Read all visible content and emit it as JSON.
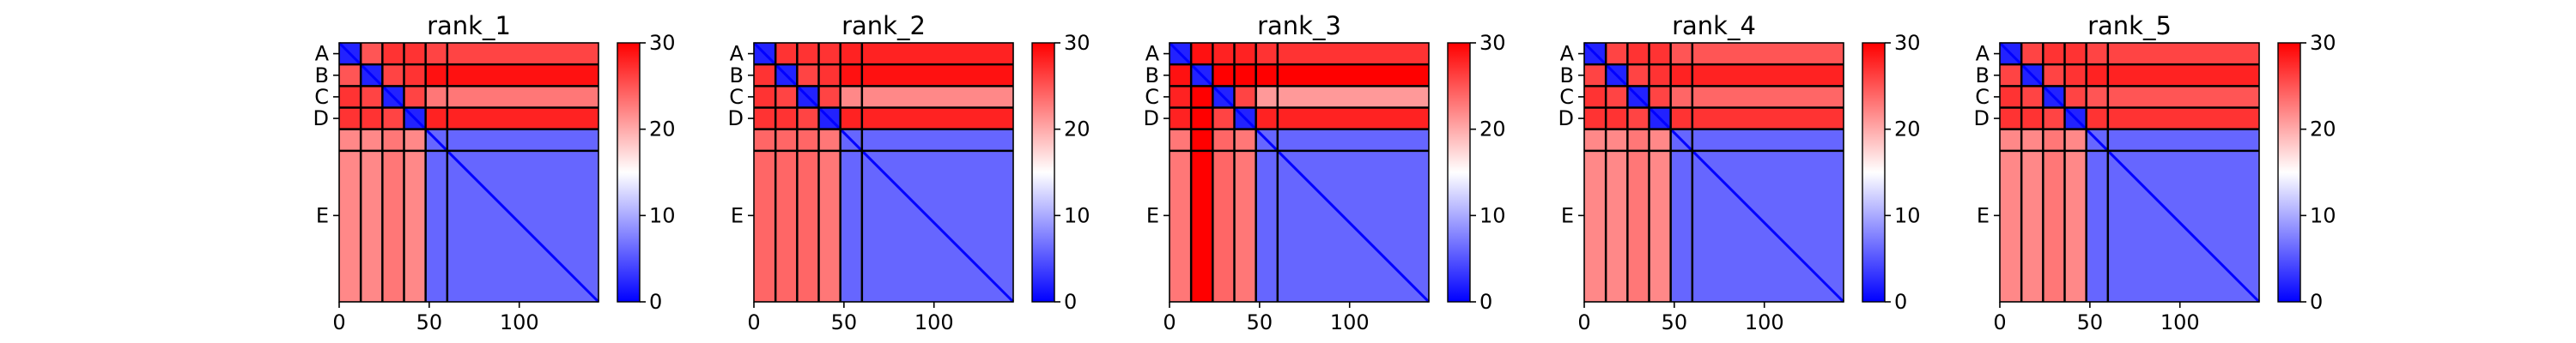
{
  "figure": {
    "background": "#ffffff"
  },
  "chart_data": [
    {
      "type": "heatmap",
      "title": "rank_1",
      "xlabel": "",
      "ylabel": "",
      "x_range": [
        0,
        144
      ],
      "y_range": [
        0,
        144
      ],
      "x_ticks": [
        0,
        50,
        100
      ],
      "x_tick_labels": [
        "0",
        "50",
        "100"
      ],
      "chain_labels": [
        "A",
        "B",
        "C",
        "D",
        "E"
      ],
      "chain_boundaries": [
        0,
        12,
        24,
        36,
        48,
        60,
        144
      ],
      "colorbar": {
        "min": 0,
        "max": 30,
        "ticks": [
          0,
          10,
          20,
          30
        ],
        "tick_labels": [
          "0",
          "10",
          "20",
          "30"
        ],
        "colors": [
          "#0000ff",
          "#ffffff",
          "#ff0000"
        ]
      },
      "block_mean_values": [
        [
          2,
          25,
          27,
          27,
          26,
          26
        ],
        [
          25,
          2,
          26,
          27,
          29,
          29
        ],
        [
          27,
          26,
          2,
          26,
          23,
          23
        ],
        [
          27,
          27,
          26,
          2,
          28,
          28
        ],
        [
          22,
          22,
          23,
          22,
          6,
          6
        ],
        [
          22,
          22,
          23,
          22,
          6,
          6
        ]
      ]
    },
    {
      "type": "heatmap",
      "title": "rank_2",
      "xlabel": "",
      "ylabel": "",
      "x_range": [
        0,
        144
      ],
      "y_range": [
        0,
        144
      ],
      "x_ticks": [
        0,
        50,
        100
      ],
      "x_tick_labels": [
        "0",
        "50",
        "100"
      ],
      "chain_labels": [
        "A",
        "B",
        "C",
        "D",
        "E"
      ],
      "chain_boundaries": [
        0,
        12,
        24,
        36,
        48,
        60,
        144
      ],
      "colorbar": {
        "min": 0,
        "max": 30,
        "ticks": [
          0,
          10,
          20,
          30
        ],
        "tick_labels": [
          "0",
          "10",
          "20",
          "30"
        ],
        "colors": [
          "#0000ff",
          "#ffffff",
          "#ff0000"
        ]
      },
      "block_mean_values": [
        [
          2,
          27,
          27,
          27,
          28,
          28
        ],
        [
          27,
          2,
          26,
          27,
          29,
          29
        ],
        [
          27,
          26,
          2,
          26,
          22,
          22
        ],
        [
          27,
          27,
          26,
          2,
          28,
          28
        ],
        [
          24,
          24,
          24,
          23,
          6,
          6
        ],
        [
          24,
          24,
          24,
          23,
          6,
          6
        ]
      ]
    },
    {
      "type": "heatmap",
      "title": "rank_3",
      "xlabel": "",
      "ylabel": "",
      "x_range": [
        0,
        144
      ],
      "y_range": [
        0,
        144
      ],
      "x_ticks": [
        0,
        50,
        100
      ],
      "x_tick_labels": [
        "0",
        "50",
        "100"
      ],
      "chain_labels": [
        "A",
        "B",
        "C",
        "D",
        "E"
      ],
      "chain_boundaries": [
        0,
        12,
        24,
        36,
        48,
        60,
        144
      ],
      "colorbar": {
        "min": 0,
        "max": 30,
        "ticks": [
          0,
          10,
          20,
          30
        ],
        "tick_labels": [
          "0",
          "10",
          "20",
          "30"
        ],
        "colors": [
          "#0000ff",
          "#ffffff",
          "#ff0000"
        ]
      },
      "block_mean_values": [
        [
          2,
          29,
          28,
          28,
          27,
          27
        ],
        [
          29,
          2,
          30,
          30,
          30,
          30
        ],
        [
          28,
          30,
          2,
          26,
          21,
          21
        ],
        [
          28,
          30,
          26,
          2,
          28,
          28
        ],
        [
          23,
          30,
          24,
          23,
          6,
          6
        ],
        [
          23,
          30,
          24,
          23,
          6,
          6
        ]
      ]
    },
    {
      "type": "heatmap",
      "title": "rank_4",
      "xlabel": "",
      "ylabel": "",
      "x_range": [
        0,
        144
      ],
      "y_range": [
        0,
        144
      ],
      "x_ticks": [
        0,
        50,
        100
      ],
      "x_tick_labels": [
        "0",
        "50",
        "100"
      ],
      "chain_labels": [
        "A",
        "B",
        "C",
        "D",
        "E"
      ],
      "chain_boundaries": [
        0,
        12,
        24,
        36,
        48,
        60,
        144
      ],
      "colorbar": {
        "min": 0,
        "max": 30,
        "ticks": [
          0,
          10,
          20,
          30
        ],
        "tick_labels": [
          "0",
          "10",
          "20",
          "30"
        ],
        "colors": [
          "#0000ff",
          "#ffffff",
          "#ff0000"
        ]
      },
      "block_mean_values": [
        [
          2,
          26,
          27,
          27,
          25,
          25
        ],
        [
          26,
          2,
          26,
          27,
          28,
          28
        ],
        [
          27,
          26,
          2,
          26,
          24,
          24
        ],
        [
          27,
          27,
          26,
          2,
          27,
          27
        ],
        [
          22,
          22,
          23,
          22,
          6,
          6
        ],
        [
          22,
          22,
          23,
          22,
          6,
          6
        ]
      ]
    },
    {
      "type": "heatmap",
      "title": "rank_5",
      "xlabel": "",
      "ylabel": "",
      "x_range": [
        0,
        144
      ],
      "y_range": [
        0,
        144
      ],
      "x_ticks": [
        0,
        50,
        100
      ],
      "x_tick_labels": [
        "0",
        "50",
        "100"
      ],
      "chain_labels": [
        "A",
        "B",
        "C",
        "D",
        "E"
      ],
      "chain_boundaries": [
        0,
        12,
        24,
        36,
        48,
        60,
        144
      ],
      "colorbar": {
        "min": 0,
        "max": 30,
        "ticks": [
          0,
          10,
          20,
          30
        ],
        "tick_labels": [
          "0",
          "10",
          "20",
          "30"
        ],
        "colors": [
          "#0000ff",
          "#ffffff",
          "#ff0000"
        ]
      },
      "block_mean_values": [
        [
          2,
          26,
          27,
          27,
          26,
          26
        ],
        [
          26,
          2,
          26,
          27,
          28,
          28
        ],
        [
          27,
          26,
          2,
          26,
          25,
          25
        ],
        [
          27,
          27,
          26,
          2,
          27,
          27
        ],
        [
          22,
          22,
          23,
          22,
          6,
          6
        ],
        [
          22,
          22,
          23,
          22,
          6,
          6
        ]
      ]
    }
  ]
}
